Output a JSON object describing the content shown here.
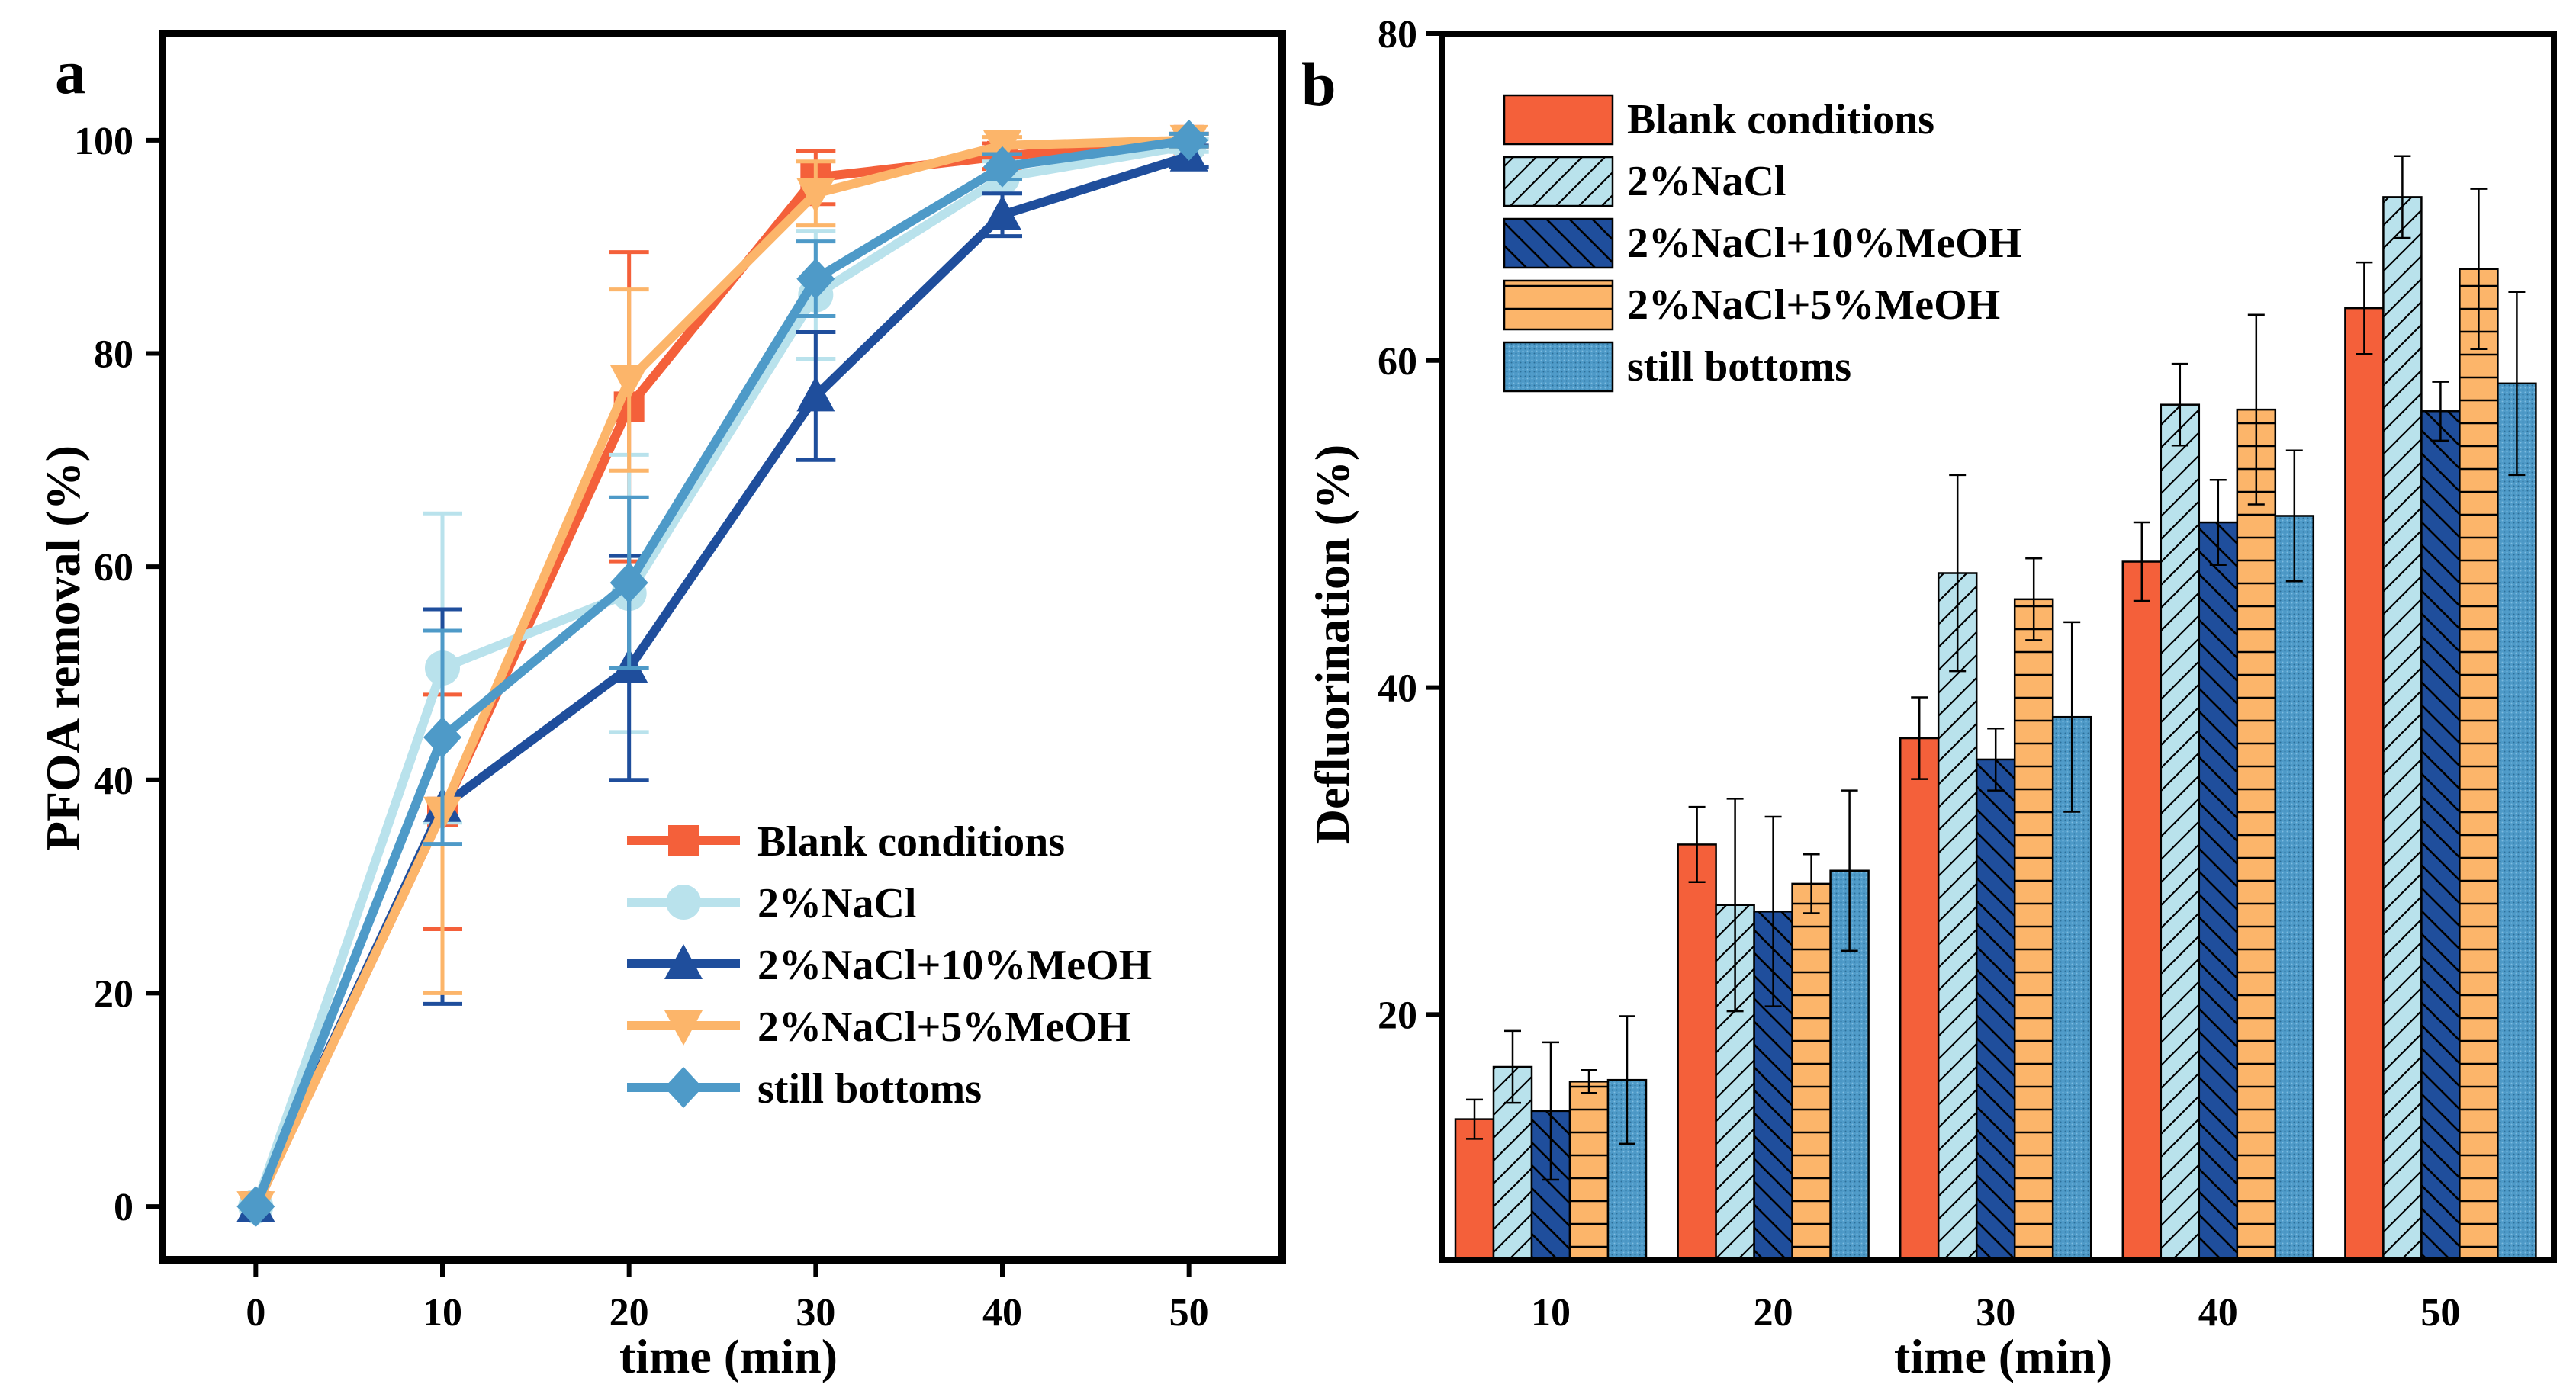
{
  "panel_labels": {
    "a": "a",
    "b": "b"
  },
  "legend_labels": [
    "Blank conditions",
    "2%NaCl",
    "2%NaCl+10%MeOH",
    "2%NaCl+5%MeOH",
    "still bottoms"
  ],
  "colors": {
    "blank": "#F4603A",
    "nacl": "#B9E2EC",
    "nacl_meoh10": "#1F4E9C",
    "nacl_meoh5": "#FCB56A",
    "still": "#4E9AC8"
  },
  "chart_data": [
    {
      "type": "line",
      "xlabel": "time (min)",
      "ylabel": "PFOA removal (%)",
      "xlim": [
        -5,
        55
      ],
      "ylim": [
        -5,
        110
      ],
      "xticks": [
        "0",
        "10",
        "20",
        "30",
        "40",
        "50"
      ],
      "yticks": [
        "0",
        "20",
        "40",
        "60",
        "80",
        "100"
      ],
      "legend_position": "bottom-right",
      "x": [
        0,
        10,
        20,
        30,
        40,
        50
      ],
      "series": [
        {
          "name": "Blank conditions",
          "marker": "square",
          "values": [
            0,
            37,
            75,
            96.5,
            98.5,
            100
          ],
          "errors": [
            0,
            11,
            14.5,
            2.5,
            1.2,
            0.6
          ]
        },
        {
          "name": "2%NaCl",
          "marker": "circle",
          "values": [
            0,
            50.5,
            57.5,
            85.5,
            96.5,
            99.5
          ],
          "errors": [
            0,
            14.5,
            13,
            6,
            1.5,
            0.6
          ]
        },
        {
          "name": "2%NaCl+10%MeOH",
          "marker": "triangle-up",
          "values": [
            0,
            37.5,
            50.5,
            76,
            93,
            98.5
          ],
          "errors": [
            0,
            18.5,
            10.5,
            6,
            2,
            1
          ]
        },
        {
          "name": "2%NaCl+5%MeOH",
          "marker": "triangle-down",
          "values": [
            0,
            37,
            77.5,
            95,
            99.5,
            100
          ],
          "errors": [
            0,
            17,
            8.5,
            3,
            0.8,
            0.6
          ]
        },
        {
          "name": "still bottoms",
          "marker": "diamond",
          "values": [
            0,
            44,
            58.5,
            87,
            97.5,
            100
          ],
          "errors": [
            0,
            10,
            8,
            3.5,
            1.2,
            0.6
          ]
        }
      ]
    },
    {
      "type": "bar",
      "xlabel": "time (min)",
      "ylabel": "Defluorination (%)",
      "ylim": [
        5,
        80
      ],
      "yticks": [
        "20",
        "40",
        "60",
        "80"
      ],
      "categories": [
        "10",
        "20",
        "30",
        "40",
        "50"
      ],
      "legend_position": "top-left",
      "series": [
        {
          "name": "Blank conditions",
          "pattern": "solid",
          "values": [
            13.6,
            30.4,
            36.9,
            47.7,
            63.2
          ],
          "errors": [
            1.2,
            2.3,
            2.5,
            2.4,
            2.8
          ]
        },
        {
          "name": "2%NaCl",
          "pattern": "diagonal",
          "values": [
            16.8,
            26.7,
            47.0,
            57.3,
            70.0
          ],
          "errors": [
            2.2,
            6.5,
            6.0,
            2.5,
            2.5
          ]
        },
        {
          "name": "2%NaCl+10%MeOH",
          "pattern": "back-diagonal",
          "values": [
            14.1,
            26.3,
            35.6,
            50.1,
            56.9
          ],
          "errors": [
            4.2,
            5.8,
            1.9,
            2.6,
            1.8
          ]
        },
        {
          "name": "2%NaCl+5%MeOH",
          "pattern": "horizontal",
          "values": [
            15.9,
            28.0,
            45.4,
            57.0,
            65.6
          ],
          "errors": [
            0.7,
            1.8,
            2.5,
            5.8,
            4.9
          ]
        },
        {
          "name": "still bottoms",
          "pattern": "dots",
          "values": [
            16.0,
            28.8,
            38.2,
            50.5,
            58.6
          ],
          "errors": [
            3.9,
            4.9,
            5.8,
            4.0,
            5.6
          ]
        }
      ]
    }
  ]
}
